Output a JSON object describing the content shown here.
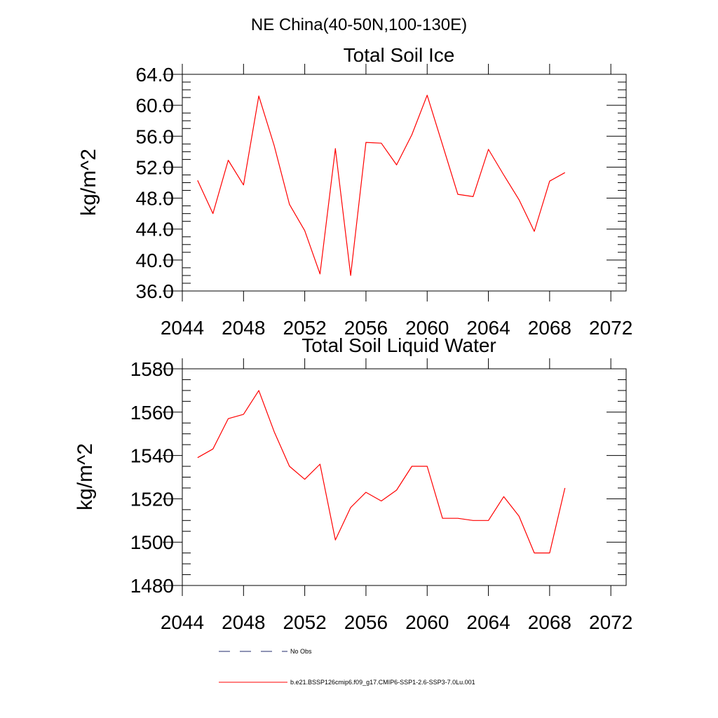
{
  "figure": {
    "title": "NE China(40-50N,100-130E)"
  },
  "chart_data": [
    {
      "type": "line",
      "title": "Total Soil Ice",
      "xlabel": "",
      "ylabel": "kg/m^2",
      "xlim": [
        2044,
        2073
      ],
      "ylim": [
        36,
        64
      ],
      "xticks": [
        "2044",
        "2048",
        "2052",
        "2056",
        "2060",
        "2064",
        "2068",
        "2072"
      ],
      "yticks": [
        "36.0",
        "40.0",
        "44.0",
        "48.0",
        "52.0",
        "56.0",
        "60.0",
        "64.0"
      ],
      "series": [
        {
          "name": "b.e21.BSSP126cmip6.f09_g17.CMIP6-SSP1-2.6-SSP3-7.0Lu.001",
          "color": "#ff0000",
          "x": [
            2045,
            2046,
            2047,
            2048,
            2049,
            2050,
            2051,
            2052,
            2053,
            2054,
            2055,
            2056,
            2057,
            2058,
            2059,
            2060,
            2061,
            2062,
            2063,
            2064,
            2065,
            2066,
            2067,
            2068,
            2069
          ],
          "y": [
            50.3,
            46.0,
            52.9,
            49.7,
            61.2,
            54.8,
            47.2,
            43.8,
            38.2,
            54.4,
            38.0,
            55.2,
            55.1,
            52.3,
            56.2,
            61.3,
            54.9,
            48.5,
            48.2,
            54.3,
            51.0,
            47.8,
            43.7,
            50.2,
            51.3
          ]
        }
      ]
    },
    {
      "type": "line",
      "title": "Total Soil Liquid Water",
      "xlabel": "",
      "ylabel": "kg/m^2",
      "xlim": [
        2044,
        2073
      ],
      "ylim": [
        1480,
        1580
      ],
      "xticks": [
        "2044",
        "2048",
        "2052",
        "2056",
        "2060",
        "2064",
        "2068",
        "2072"
      ],
      "yticks": [
        "1480",
        "1500",
        "1520",
        "1540",
        "1560",
        "1580"
      ],
      "series": [
        {
          "name": "b.e21.BSSP126cmip6.f09_g17.CMIP6-SSP1-2.6-SSP3-7.0Lu.001",
          "color": "#ff0000",
          "x": [
            2045,
            2046,
            2047,
            2048,
            2049,
            2050,
            2051,
            2052,
            2053,
            2054,
            2055,
            2056,
            2057,
            2058,
            2059,
            2060,
            2061,
            2062,
            2063,
            2064,
            2065,
            2066,
            2067,
            2068,
            2069
          ],
          "y": [
            1539,
            1543,
            1557,
            1559,
            1570,
            1551,
            1535,
            1529,
            1536,
            1501,
            1516,
            1523,
            1519,
            1524,
            1535,
            1535,
            1511,
            1511,
            1510,
            1510,
            1521,
            1512,
            1495,
            1495,
            1525
          ]
        }
      ]
    }
  ],
  "legend": {
    "items": [
      {
        "label": "No Obs",
        "color": "#1f2a6b",
        "style": "dashed"
      },
      {
        "label": "b.e21.BSSP126cmip6.f09_g17.CMIP6-SSP1-2.6-SSP3-7.0Lu.001",
        "color": "#ff0000",
        "style": "solid"
      }
    ]
  }
}
